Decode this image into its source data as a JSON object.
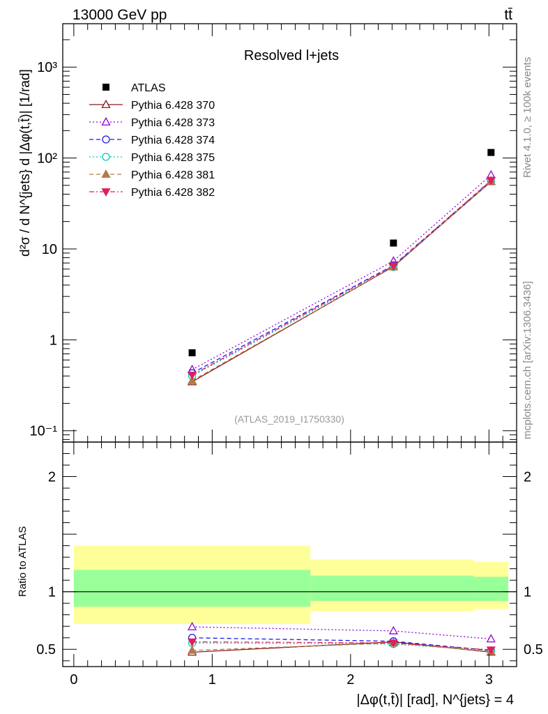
{
  "header": {
    "energy_label": "13000 GeV pp",
    "process_label": "tt̄"
  },
  "side_labels": {
    "rivet": "Rivet 4.1.0, ≥ 100k events",
    "mcplots": "mcplots.cern.ch [arXiv:1306.3436]"
  },
  "watermark": "(ATLAS_2019_I1750330)",
  "chart_data": [
    {
      "type": "scatter",
      "title": "Resolved l+jets",
      "ylabel": "d²σ / d N^{jets} d |Δφ(t,t̄)| [1/rad]",
      "yscale": "log",
      "ylim": [
        0.075,
        3000
      ],
      "xlim": [
        -0.08,
        3.2
      ],
      "ytick_labels": [
        "10⁻¹",
        "1",
        "10",
        "10²",
        "10³"
      ],
      "ytick_values": [
        0.1,
        1,
        10,
        100,
        1000
      ],
      "legend_position": "top-left",
      "data_series": {
        "name": "ATLAS",
        "x": [
          0.855,
          2.31,
          3.015
        ],
        "y": [
          0.72,
          11.6,
          115
        ],
        "color": "#000000",
        "marker": "square"
      },
      "series": [
        {
          "name": "Pythia 6.428 370",
          "color": "#8b1a1a",
          "marker": "triangle-open",
          "dash": "solid",
          "x": [
            0.855,
            2.31,
            3.015
          ],
          "y": [
            0.345,
            6.4,
            55
          ]
        },
        {
          "name": "Pythia 6.428 373",
          "color": "#9400d3",
          "marker": "triangle-open",
          "dash": "dotted",
          "x": [
            0.855,
            2.31,
            3.015
          ],
          "y": [
            0.47,
            7.35,
            65
          ]
        },
        {
          "name": "Pythia 6.428 374",
          "color": "#1a1aee",
          "marker": "circle-open",
          "dash": "dashed",
          "x": [
            0.855,
            2.31,
            3.015
          ],
          "y": [
            0.43,
            6.6,
            56
          ]
        },
        {
          "name": "Pythia 6.428 375",
          "color": "#00c8b4",
          "marker": "circle-open",
          "dash": "dotted",
          "x": [
            0.855,
            2.31,
            3.015
          ],
          "y": [
            0.4,
            6.3,
            56.5
          ]
        },
        {
          "name": "Pythia 6.428 381",
          "color": "#b07a4a",
          "marker": "triangle-filled",
          "dash": "dashed",
          "x": [
            0.855,
            2.31,
            3.015
          ],
          "y": [
            0.355,
            6.35,
            55.5
          ]
        },
        {
          "name": "Pythia 6.428 382",
          "color": "#e0205a",
          "marker": "triangle-down-filled",
          "dash": "dashdot",
          "x": [
            0.855,
            2.31,
            3.015
          ],
          "y": [
            0.41,
            6.5,
            57
          ]
        }
      ]
    },
    {
      "type": "line",
      "title": "",
      "ylabel": "Ratio to ATLAS",
      "xlabel": "|Δφ(t,t̄)| [rad], N^{jets} = 4",
      "ylim": [
        0.35,
        2.3
      ],
      "xlim": [
        -0.08,
        3.2
      ],
      "ytick_labels": [
        "0.5",
        "1",
        "2"
      ],
      "ytick_values": [
        0.5,
        1,
        2
      ],
      "xtick_labels": [
        "0",
        "1",
        "2",
        "3"
      ],
      "xtick_values": [
        0,
        1,
        2,
        3
      ],
      "bands": [
        {
          "x_range": [
            0,
            1.71
          ],
          "total": [
            0.72,
            1.4
          ],
          "stat": [
            0.87,
            1.19
          ]
        },
        {
          "x_range": [
            1.71,
            2.89
          ],
          "total": [
            0.83,
            1.28
          ],
          "stat": [
            0.92,
            1.14
          ]
        },
        {
          "x_range": [
            2.89,
            3.14
          ],
          "total": [
            0.85,
            1.26
          ],
          "stat": [
            0.92,
            1.13
          ]
        }
      ],
      "band_colors": {
        "total": "#ffff99",
        "stat": "#99ff99"
      },
      "series": [
        {
          "name": "Pythia 6.428 370",
          "x": [
            0.855,
            2.31,
            3.015
          ],
          "y": [
            0.475,
            0.565,
            0.475
          ]
        },
        {
          "name": "Pythia 6.428 373",
          "x": [
            0.855,
            2.31,
            3.015
          ],
          "y": [
            0.695,
            0.66,
            0.59
          ]
        },
        {
          "name": "Pythia 6.428 374",
          "x": [
            0.855,
            2.31,
            3.015
          ],
          "y": [
            0.6,
            0.57,
            0.49
          ]
        },
        {
          "name": "Pythia 6.428 375",
          "x": [
            0.855,
            2.31,
            3.015
          ],
          "y": [
            0.555,
            0.545,
            0.49
          ]
        },
        {
          "name": "Pythia 6.428 381",
          "x": [
            0.855,
            2.31,
            3.015
          ],
          "y": [
            0.49,
            0.555,
            0.48
          ]
        },
        {
          "name": "Pythia 6.428 382",
          "x": [
            0.855,
            2.31,
            3.015
          ],
          "y": [
            0.565,
            0.555,
            0.495
          ]
        }
      ]
    }
  ]
}
